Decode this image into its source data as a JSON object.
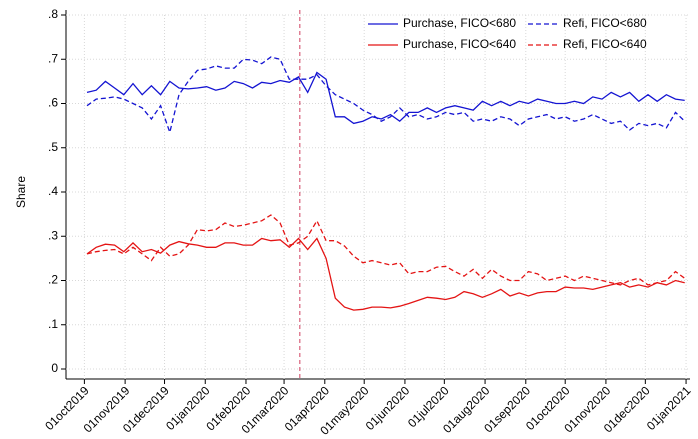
{
  "chart_data": {
    "type": "line",
    "y_label": "Share",
    "x": [
      "2019-10-03",
      "2019-10-10",
      "2019-10-17",
      "2019-10-24",
      "2019-10-31",
      "2019-11-07",
      "2019-11-14",
      "2019-11-21",
      "2019-11-28",
      "2019-12-05",
      "2019-12-12",
      "2019-12-19",
      "2019-12-26",
      "2020-01-02",
      "2020-01-09",
      "2020-01-16",
      "2020-01-23",
      "2020-01-30",
      "2020-02-06",
      "2020-02-13",
      "2020-02-20",
      "2020-02-27",
      "2020-03-05",
      "2020-03-12",
      "2020-03-19",
      "2020-03-26",
      "2020-04-02",
      "2020-04-09",
      "2020-04-16",
      "2020-04-23",
      "2020-04-30",
      "2020-05-07",
      "2020-05-14",
      "2020-05-21",
      "2020-05-28",
      "2020-06-04",
      "2020-06-11",
      "2020-06-18",
      "2020-06-25",
      "2020-07-02",
      "2020-07-09",
      "2020-07-16",
      "2020-07-23",
      "2020-07-30",
      "2020-08-06",
      "2020-08-13",
      "2020-08-20",
      "2020-08-27",
      "2020-09-03",
      "2020-09-10",
      "2020-09-17",
      "2020-09-24",
      "2020-10-01",
      "2020-10-08",
      "2020-10-15",
      "2020-10-22",
      "2020-10-29",
      "2020-11-05",
      "2020-11-12",
      "2020-11-19",
      "2020-11-26",
      "2020-12-03",
      "2020-12-10",
      "2020-12-17",
      "2020-12-24",
      "2020-12-31"
    ],
    "series": [
      {
        "name": "Purchase, FICO<680",
        "color": "#1414d2",
        "dash": false,
        "values": [
          0.625,
          0.63,
          0.65,
          0.635,
          0.62,
          0.645,
          0.62,
          0.64,
          0.62,
          0.65,
          0.635,
          0.633,
          0.635,
          0.638,
          0.63,
          0.635,
          0.65,
          0.645,
          0.635,
          0.648,
          0.645,
          0.652,
          0.648,
          0.66,
          0.625,
          0.67,
          0.655,
          0.57,
          0.57,
          0.555,
          0.56,
          0.57,
          0.565,
          0.575,
          0.56,
          0.58,
          0.58,
          0.59,
          0.58,
          0.59,
          0.595,
          0.59,
          0.585,
          0.605,
          0.595,
          0.605,
          0.595,
          0.605,
          0.6,
          0.61,
          0.605,
          0.6,
          0.6,
          0.605,
          0.6,
          0.615,
          0.61,
          0.625,
          0.615,
          0.625,
          0.605,
          0.62,
          0.605,
          0.62,
          0.61,
          0.607
        ]
      },
      {
        "name": "Refi, FICO<680",
        "color": "#1414d2",
        "dash": true,
        "values": [
          0.595,
          0.61,
          0.612,
          0.615,
          0.61,
          0.6,
          0.59,
          0.565,
          0.595,
          0.535,
          0.62,
          0.65,
          0.675,
          0.678,
          0.685,
          0.68,
          0.68,
          0.7,
          0.698,
          0.69,
          0.705,
          0.7,
          0.655,
          0.655,
          0.655,
          0.665,
          0.64,
          0.62,
          0.61,
          0.6,
          0.585,
          0.575,
          0.56,
          0.57,
          0.59,
          0.57,
          0.575,
          0.565,
          0.57,
          0.58,
          0.575,
          0.58,
          0.56,
          0.565,
          0.56,
          0.57,
          0.565,
          0.55,
          0.565,
          0.57,
          0.575,
          0.565,
          0.57,
          0.56,
          0.565,
          0.575,
          0.565,
          0.555,
          0.56,
          0.54,
          0.555,
          0.55,
          0.555,
          0.545,
          0.58,
          0.56
        ]
      },
      {
        "name": "Purchase, FICO<640",
        "color": "#e41414",
        "dash": false,
        "values": [
          0.26,
          0.275,
          0.282,
          0.28,
          0.265,
          0.285,
          0.265,
          0.27,
          0.262,
          0.28,
          0.288,
          0.283,
          0.28,
          0.275,
          0.275,
          0.285,
          0.285,
          0.28,
          0.28,
          0.295,
          0.29,
          0.292,
          0.275,
          0.295,
          0.27,
          0.295,
          0.25,
          0.16,
          0.14,
          0.133,
          0.135,
          0.14,
          0.14,
          0.138,
          0.142,
          0.148,
          0.155,
          0.162,
          0.16,
          0.157,
          0.162,
          0.175,
          0.17,
          0.162,
          0.17,
          0.18,
          0.165,
          0.172,
          0.165,
          0.172,
          0.175,
          0.175,
          0.185,
          0.183,
          0.183,
          0.18,
          0.185,
          0.19,
          0.195,
          0.185,
          0.19,
          0.185,
          0.195,
          0.19,
          0.2,
          0.195
        ]
      },
      {
        "name": "Refi, FICO<640",
        "color": "#e41414",
        "dash": true,
        "values": [
          0.26,
          0.265,
          0.268,
          0.27,
          0.26,
          0.275,
          0.26,
          0.245,
          0.275,
          0.255,
          0.26,
          0.28,
          0.315,
          0.312,
          0.315,
          0.33,
          0.322,
          0.325,
          0.33,
          0.335,
          0.348,
          0.33,
          0.28,
          0.285,
          0.3,
          0.335,
          0.29,
          0.29,
          0.278,
          0.255,
          0.24,
          0.245,
          0.24,
          0.235,
          0.24,
          0.215,
          0.22,
          0.22,
          0.23,
          0.232,
          0.22,
          0.21,
          0.225,
          0.205,
          0.225,
          0.21,
          0.2,
          0.2,
          0.22,
          0.215,
          0.2,
          0.205,
          0.21,
          0.2,
          0.21,
          0.205,
          0.2,
          0.195,
          0.19,
          0.2,
          0.205,
          0.19,
          0.195,
          0.2,
          0.22,
          0.205
        ]
      }
    ],
    "reference_line": {
      "x": "2020-03-13",
      "color": "#d04060",
      "dash": true
    },
    "xlim": [
      "2019-09-17",
      "2021-01-04"
    ],
    "xticks": [
      {
        "value": "2019-10-01",
        "label": "01oct2019"
      },
      {
        "value": "2019-11-01",
        "label": "01nov2019"
      },
      {
        "value": "2019-12-01",
        "label": "01dec2019"
      },
      {
        "value": "2020-01-01",
        "label": "01jan2020"
      },
      {
        "value": "2020-02-01",
        "label": "01feb2020"
      },
      {
        "value": "2020-03-01",
        "label": "01mar2020"
      },
      {
        "value": "2020-04-01",
        "label": "01apr2020"
      },
      {
        "value": "2020-05-01",
        "label": "01may2020"
      },
      {
        "value": "2020-06-01",
        "label": "01jun2020"
      },
      {
        "value": "2020-07-01",
        "label": "01jul2020"
      },
      {
        "value": "2020-08-01",
        "label": "01aug2020"
      },
      {
        "value": "2020-09-01",
        "label": "01sep2020"
      },
      {
        "value": "2020-10-01",
        "label": "01oct2020"
      },
      {
        "value": "2020-11-01",
        "label": "01nov2020"
      },
      {
        "value": "2020-12-01",
        "label": "01dec2020"
      },
      {
        "value": "2021-01-01",
        "label": "01jan2021"
      }
    ],
    "ylim": [
      0,
      0.8
    ],
    "yticks": [
      0,
      {
        "value": 0.1,
        "label": ".1"
      },
      {
        "value": 0.2,
        "label": ".2"
      },
      {
        "value": 0.3,
        "label": ".3"
      },
      {
        "value": 0.4,
        "label": ".4"
      },
      {
        "value": 0.5,
        "label": ".5"
      },
      {
        "value": 0.6,
        "label": ".6"
      },
      {
        "value": 0.7,
        "label": ".7"
      },
      {
        "value": 0.8,
        "label": ".8"
      }
    ],
    "grid": true,
    "legend": "top-right"
  }
}
